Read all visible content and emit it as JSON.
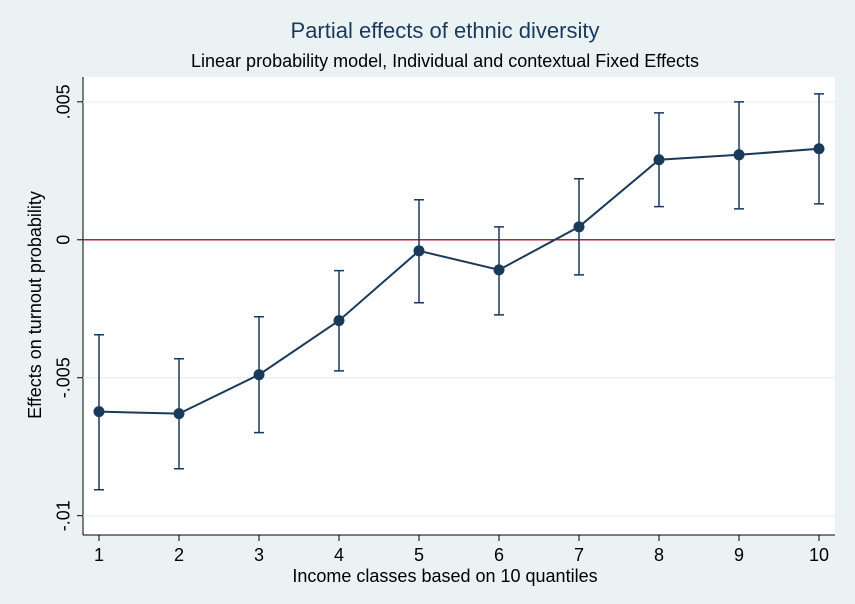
{
  "chart_data": {
    "type": "line",
    "title": "Partial effects of ethnic diversity",
    "subtitle": "Linear probability model, Individual and contextual Fixed Effects",
    "x_label": "Income classes based on 10 quantiles",
    "y_label": "Effects on turnout probability",
    "x": [
      1,
      2,
      3,
      4,
      5,
      6,
      7,
      8,
      9,
      10
    ],
    "series": [
      {
        "color": "#1a3a5c",
        "values": [
          -0.00623,
          -0.0063,
          -0.00489,
          -0.00293,
          -0.0004,
          -0.00109,
          0.00047,
          0.0029,
          0.00308,
          0.0033
        ],
        "lower": [
          -0.00906,
          -0.0083,
          -0.00699,
          -0.00475,
          -0.00228,
          -0.00272,
          -0.00127,
          0.0012,
          0.00112,
          0.0013
        ],
        "upper": [
          -0.00344,
          -0.00431,
          -0.00279,
          -0.00112,
          0.00145,
          0.00047,
          0.00221,
          0.0046,
          0.005,
          0.00529
        ]
      }
    ],
    "reference_line": {
      "value": 0,
      "color": "#b0243a"
    },
    "xlim": [
      0.8,
      10.2
    ],
    "xticks": [
      1,
      2,
      3,
      4,
      5,
      6,
      7,
      8,
      9,
      10
    ],
    "ylim": [
      -0.0107,
      0.0059
    ],
    "yticks": [
      {
        "value": -0.01,
        "label": "-.01"
      },
      {
        "value": -0.005,
        "label": "-.005"
      },
      {
        "value": 0,
        "label": "0"
      },
      {
        "value": 0.005,
        "label": ".005"
      }
    ],
    "grid": true
  }
}
